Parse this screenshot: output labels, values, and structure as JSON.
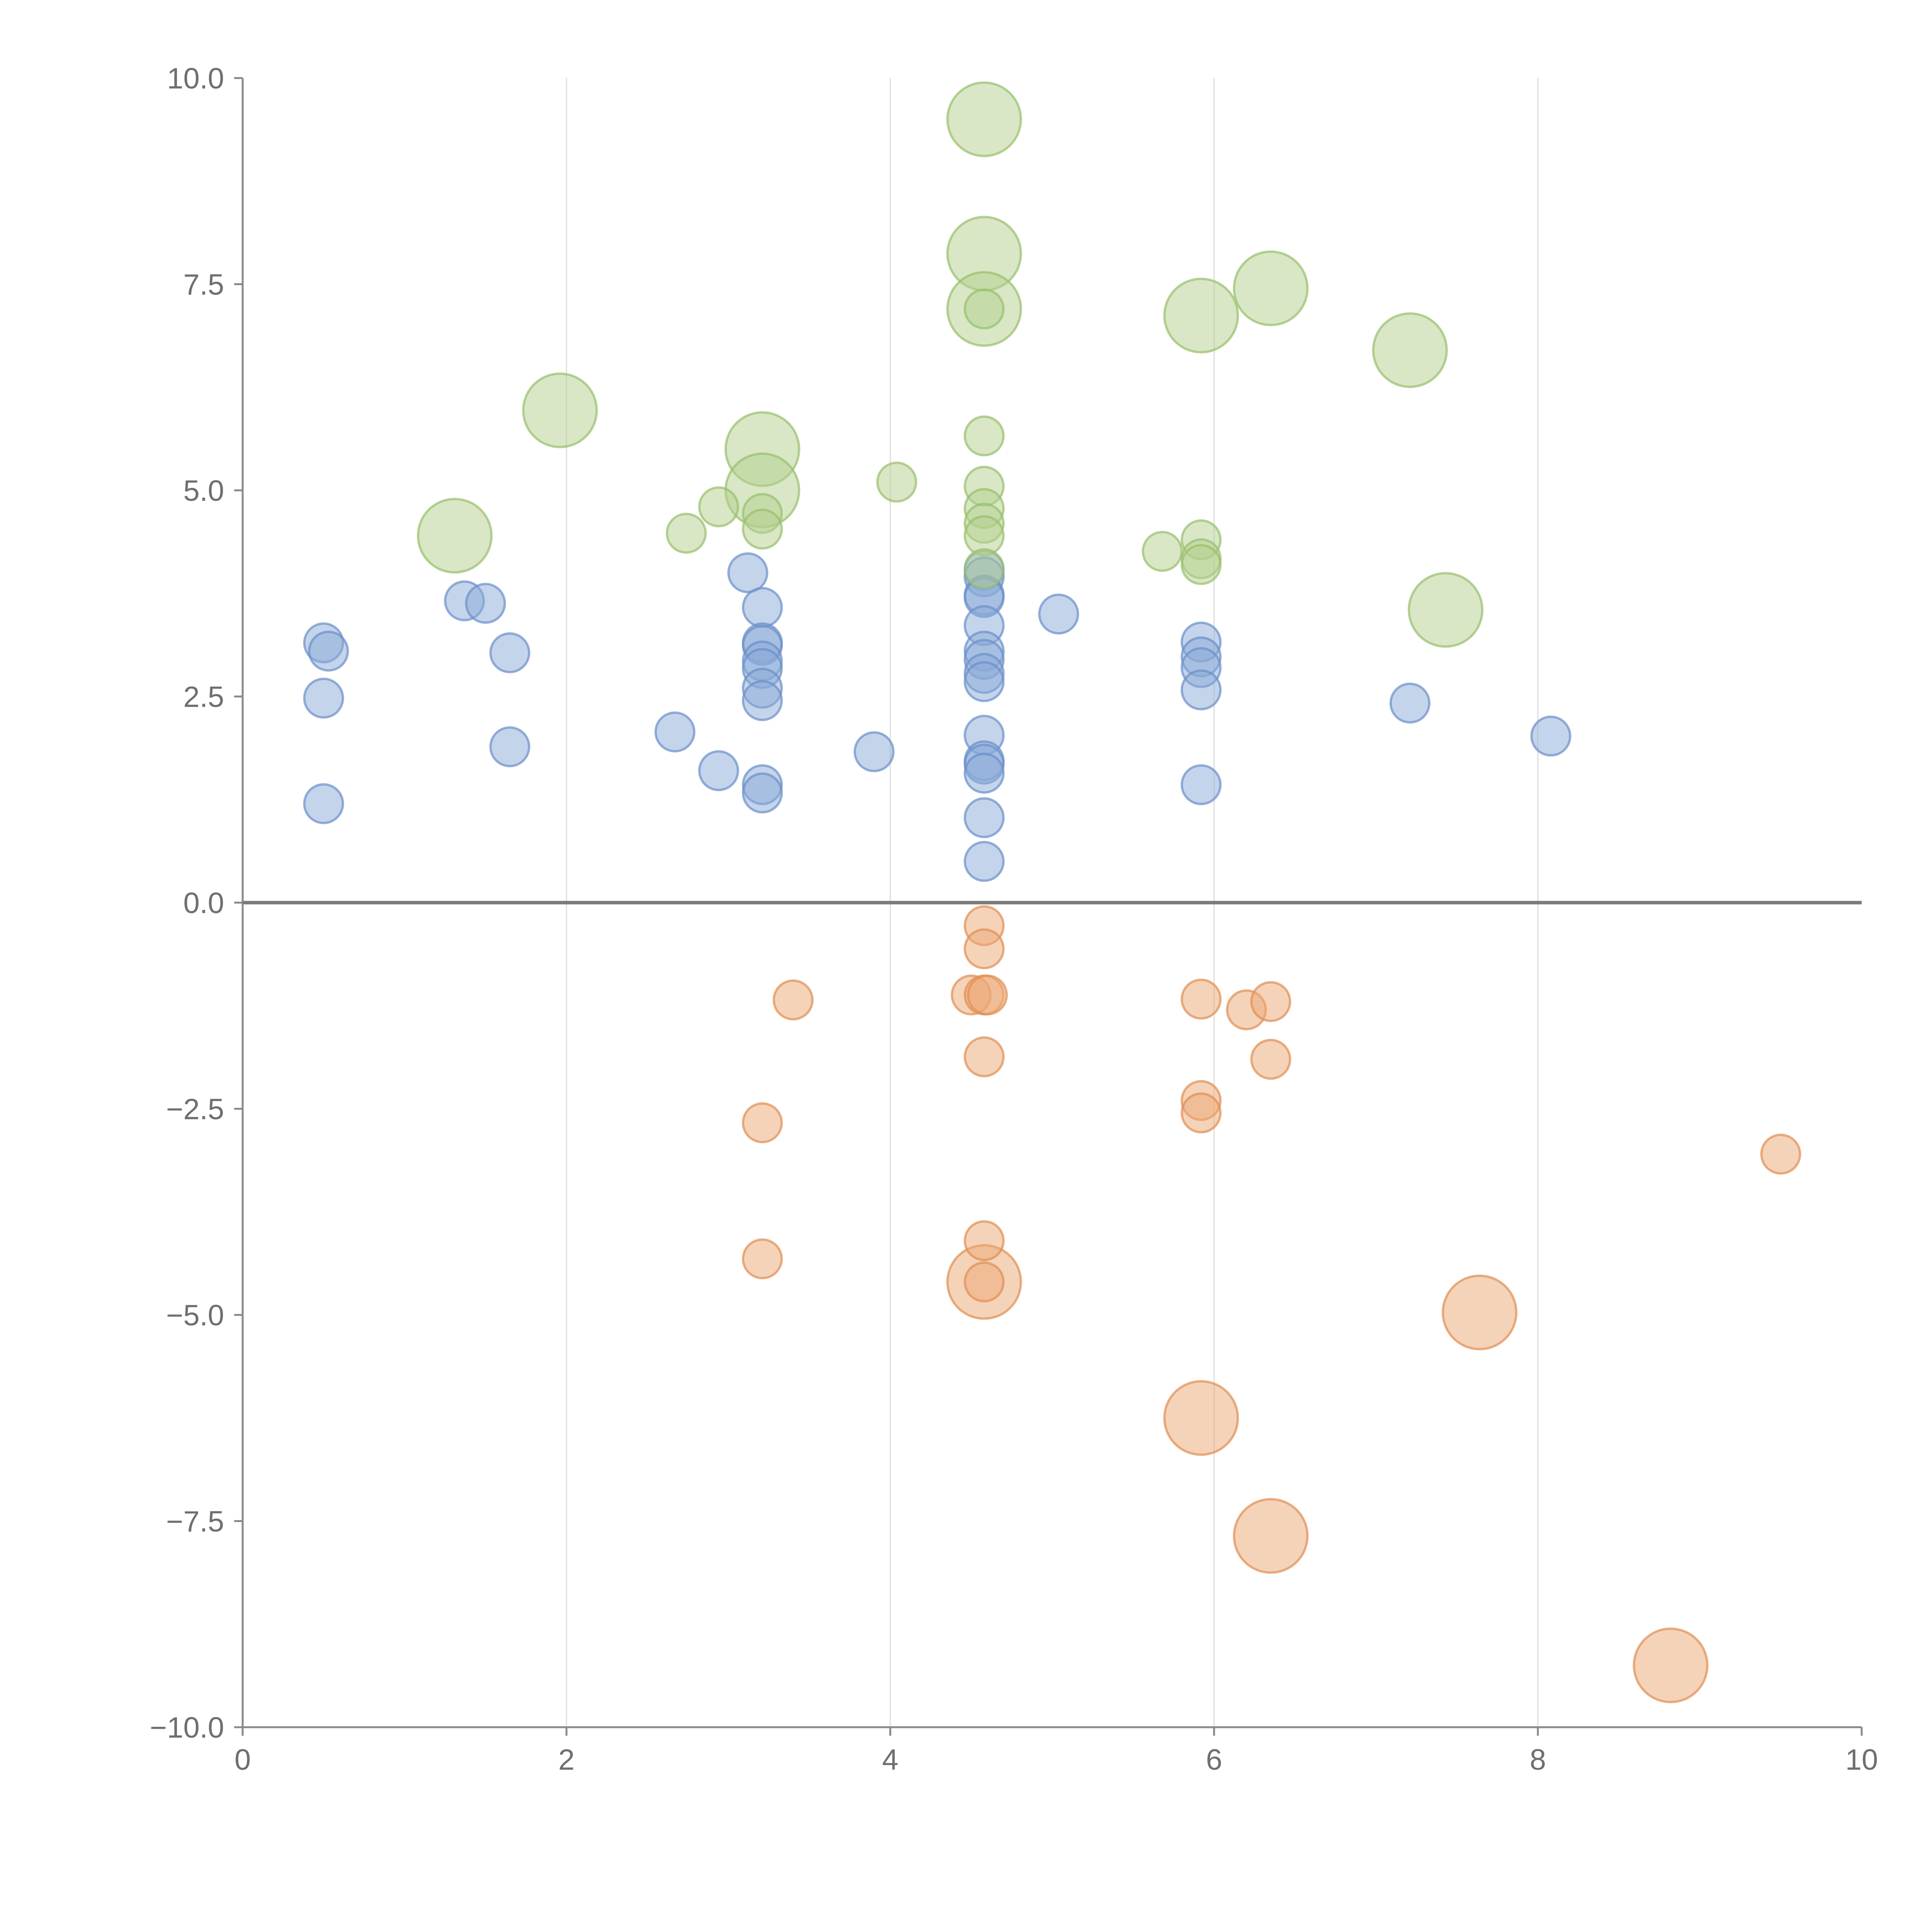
{
  "colors": {
    "blue_fill": "#8aa9d8",
    "blue_stroke": "#6b8fc9",
    "green_fill": "#b3d08e",
    "green_stroke": "#97bf6b",
    "orange_fill": "#eca873",
    "orange_stroke": "#e08f52"
  },
  "chart_data": {
    "type": "scatter",
    "title": "",
    "xlabel": "",
    "ylabel": "",
    "xlim": [
      0,
      10
    ],
    "ylim": [
      -10,
      10
    ],
    "xticks": [
      "0",
      "2",
      "4",
      "6",
      "8",
      "10"
    ],
    "yticks": [
      "10.0",
      "7.5",
      "5.0",
      "2.5",
      "0.0",
      "−2.5",
      "−5.0",
      "−7.5",
      "−10.0"
    ],
    "grid": "vertical",
    "legend": "none",
    "series": [
      {
        "name": "blue",
        "color": "#8aa9d8",
        "points": [
          {
            "x": 0.5,
            "y": 3.15,
            "size": 1
          },
          {
            "x": 0.53,
            "y": 3.05,
            "size": 1
          },
          {
            "x": 0.5,
            "y": 2.48,
            "size": 1
          },
          {
            "x": 0.5,
            "y": 1.2,
            "size": 1
          },
          {
            "x": 1.37,
            "y": 3.66,
            "size": 1
          },
          {
            "x": 1.5,
            "y": 3.63,
            "size": 1
          },
          {
            "x": 1.65,
            "y": 3.03,
            "size": 1
          },
          {
            "x": 1.65,
            "y": 1.89,
            "size": 1
          },
          {
            "x": 2.67,
            "y": 2.07,
            "size": 1
          },
          {
            "x": 2.94,
            "y": 1.6,
            "size": 1
          },
          {
            "x": 3.12,
            "y": 4.0,
            "size": 1
          },
          {
            "x": 3.21,
            "y": 3.58,
            "size": 1
          },
          {
            "x": 3.21,
            "y": 3.15,
            "size": 1
          },
          {
            "x": 3.21,
            "y": 3.12,
            "size": 1
          },
          {
            "x": 3.21,
            "y": 2.93,
            "size": 1
          },
          {
            "x": 3.21,
            "y": 2.84,
            "size": 1
          },
          {
            "x": 3.21,
            "y": 2.6,
            "size": 1
          },
          {
            "x": 3.21,
            "y": 2.45,
            "size": 1
          },
          {
            "x": 3.21,
            "y": 1.43,
            "size": 1
          },
          {
            "x": 3.21,
            "y": 1.33,
            "size": 1
          },
          {
            "x": 3.9,
            "y": 1.83,
            "size": 1
          },
          {
            "x": 4.58,
            "y": 4.03,
            "size": 1
          },
          {
            "x": 4.58,
            "y": 3.95,
            "size": 1
          },
          {
            "x": 4.58,
            "y": 3.73,
            "size": 1
          },
          {
            "x": 4.58,
            "y": 3.7,
            "size": 1
          },
          {
            "x": 4.58,
            "y": 3.36,
            "size": 1
          },
          {
            "x": 4.58,
            "y": 3.05,
            "size": 1
          },
          {
            "x": 4.58,
            "y": 2.95,
            "size": 1
          },
          {
            "x": 4.58,
            "y": 2.78,
            "size": 1
          },
          {
            "x": 4.58,
            "y": 2.68,
            "size": 1
          },
          {
            "x": 4.58,
            "y": 2.03,
            "size": 1
          },
          {
            "x": 4.58,
            "y": 1.72,
            "size": 1
          },
          {
            "x": 4.58,
            "y": 1.68,
            "size": 1
          },
          {
            "x": 4.58,
            "y": 1.57,
            "size": 1
          },
          {
            "x": 4.58,
            "y": 1.03,
            "size": 1
          },
          {
            "x": 4.58,
            "y": 0.5,
            "size": 1
          },
          {
            "x": 5.04,
            "y": 3.5,
            "size": 1
          },
          {
            "x": 5.92,
            "y": 3.16,
            "size": 1
          },
          {
            "x": 5.92,
            "y": 2.98,
            "size": 1
          },
          {
            "x": 5.92,
            "y": 2.85,
            "size": 1
          },
          {
            "x": 5.92,
            "y": 2.58,
            "size": 1
          },
          {
            "x": 5.92,
            "y": 1.43,
            "size": 1
          },
          {
            "x": 7.21,
            "y": 2.42,
            "size": 1
          },
          {
            "x": 8.08,
            "y": 2.02,
            "size": 1
          }
        ]
      },
      {
        "name": "green",
        "color": "#b3d08e",
        "points": [
          {
            "x": 1.31,
            "y": 4.45,
            "size": 3
          },
          {
            "x": 1.96,
            "y": 5.97,
            "size": 3
          },
          {
            "x": 2.74,
            "y": 4.48,
            "size": 1
          },
          {
            "x": 2.94,
            "y": 4.8,
            "size": 1
          },
          {
            "x": 3.21,
            "y": 5.5,
            "size": 3
          },
          {
            "x": 3.21,
            "y": 5.0,
            "size": 3
          },
          {
            "x": 3.21,
            "y": 4.72,
            "size": 1
          },
          {
            "x": 3.21,
            "y": 4.53,
            "size": 1
          },
          {
            "x": 4.04,
            "y": 5.1,
            "size": 1
          },
          {
            "x": 4.58,
            "y": 9.5,
            "size": 3
          },
          {
            "x": 4.58,
            "y": 7.87,
            "size": 3
          },
          {
            "x": 4.58,
            "y": 7.2,
            "size": 3
          },
          {
            "x": 4.58,
            "y": 7.2,
            "size": 1
          },
          {
            "x": 4.58,
            "y": 5.66,
            "size": 1
          },
          {
            "x": 4.58,
            "y": 5.05,
            "size": 1
          },
          {
            "x": 4.58,
            "y": 4.78,
            "size": 1
          },
          {
            "x": 4.58,
            "y": 4.6,
            "size": 1
          },
          {
            "x": 4.58,
            "y": 4.45,
            "size": 1
          },
          {
            "x": 4.58,
            "y": 4.05,
            "size": 1
          },
          {
            "x": 5.68,
            "y": 4.26,
            "size": 1
          },
          {
            "x": 5.92,
            "y": 7.12,
            "size": 3
          },
          {
            "x": 5.92,
            "y": 4.4,
            "size": 1
          },
          {
            "x": 5.92,
            "y": 4.17,
            "size": 1
          },
          {
            "x": 5.92,
            "y": 4.1,
            "size": 1
          },
          {
            "x": 6.35,
            "y": 7.45,
            "size": 3
          },
          {
            "x": 7.21,
            "y": 6.7,
            "size": 3
          },
          {
            "x": 7.43,
            "y": 3.55,
            "size": 3
          }
        ]
      },
      {
        "name": "orange",
        "color": "#eca873",
        "points": [
          {
            "x": 3.4,
            "y": -1.18,
            "size": 1
          },
          {
            "x": 3.21,
            "y": -2.67,
            "size": 1
          },
          {
            "x": 3.21,
            "y": -4.32,
            "size": 1
          },
          {
            "x": 4.58,
            "y": -0.28,
            "size": 1
          },
          {
            "x": 4.58,
            "y": -0.56,
            "size": 1
          },
          {
            "x": 4.5,
            "y": -1.12,
            "size": 1
          },
          {
            "x": 4.58,
            "y": -1.12,
            "size": 1
          },
          {
            "x": 4.6,
            "y": -1.12,
            "size": 1
          },
          {
            "x": 4.58,
            "y": -1.87,
            "size": 1
          },
          {
            "x": 4.58,
            "y": -4.1,
            "size": 1
          },
          {
            "x": 4.58,
            "y": -4.6,
            "size": 3
          },
          {
            "x": 4.58,
            "y": -4.6,
            "size": 1
          },
          {
            "x": 5.92,
            "y": -1.17,
            "size": 1
          },
          {
            "x": 5.92,
            "y": -2.4,
            "size": 1
          },
          {
            "x": 5.92,
            "y": -2.55,
            "size": 1
          },
          {
            "x": 5.92,
            "y": -6.25,
            "size": 3
          },
          {
            "x": 6.2,
            "y": -1.3,
            "size": 1
          },
          {
            "x": 6.35,
            "y": -1.2,
            "size": 1
          },
          {
            "x": 6.35,
            "y": -1.9,
            "size": 1
          },
          {
            "x": 6.35,
            "y": -7.68,
            "size": 3
          },
          {
            "x": 7.64,
            "y": -4.97,
            "size": 3
          },
          {
            "x": 8.82,
            "y": -9.25,
            "size": 3
          },
          {
            "x": 9.5,
            "y": -3.05,
            "size": 1
          }
        ]
      }
    ]
  }
}
